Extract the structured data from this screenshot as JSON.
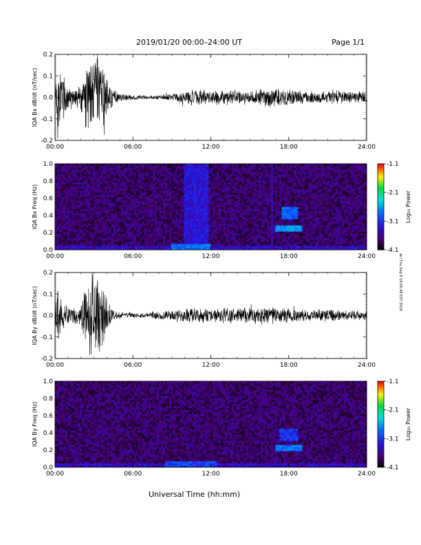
{
  "header": {
    "title": "2019/01/20  00:00–24:00 UT",
    "page": "Page 1/1"
  },
  "side_stamp": "wri Thu Sep 9 19:00:49 EST 2019",
  "chart_data": [
    {
      "type": "line",
      "ylabel": "IQA Bx dB/dt (nT/sec)",
      "xlim": [
        0,
        24
      ],
      "ylim": [
        -0.2,
        0.2
      ],
      "xticks": [
        "00:00",
        "06:00",
        "12:00",
        "18:00",
        "24:00"
      ],
      "yticks": [
        "-0.2",
        "-0.1",
        "0.0",
        "0.1",
        "0.2"
      ],
      "amplitude_profile": {
        "hour": [
          0,
          0.2,
          0.5,
          1.0,
          1.5,
          2.0,
          2.4,
          2.7,
          3.0,
          3.3,
          3.7,
          4.0,
          4.5,
          5.0,
          6.0,
          7.0,
          8.0,
          9.0,
          10.0,
          10.5,
          11.0,
          12.0,
          13.0,
          14.0,
          15.0,
          16.0,
          16.7,
          17.5,
          18.0,
          19.0,
          20.0,
          21.0,
          22.0,
          23.0,
          24.0
        ],
        "envelope": [
          0.06,
          0.22,
          0.14,
          0.07,
          0.05,
          0.07,
          0.16,
          0.22,
          0.22,
          0.22,
          0.18,
          0.1,
          0.04,
          0.025,
          0.012,
          0.01,
          0.012,
          0.02,
          0.03,
          0.045,
          0.04,
          0.035,
          0.04,
          0.038,
          0.035,
          0.05,
          0.05,
          0.045,
          0.04,
          0.035,
          0.032,
          0.04,
          0.035,
          0.03,
          0.03
        ]
      }
    },
    {
      "type": "heatmap",
      "ylabel": "IQA Bx Freq (Hz)",
      "xlim": [
        0,
        24
      ],
      "ylim": [
        0,
        1.0
      ],
      "xticks": [
        "00:00",
        "06:00",
        "12:00",
        "18:00",
        "24:00"
      ],
      "yticks": [
        "0.0",
        "0.2",
        "0.4",
        "0.6",
        "0.8",
        "1.0"
      ],
      "colorbar": {
        "label": "Log₁₀ Power",
        "ticks": [
          "-1.1",
          "-2.1",
          "-3.1",
          "-4.1"
        ],
        "range": [
          -4.1,
          -1.1
        ]
      },
      "features": [
        {
          "t0": 10.0,
          "t1": 11.9,
          "f0": 0.0,
          "f1": 1.0,
          "level": -3.3
        },
        {
          "t0": 9.0,
          "t1": 12.0,
          "f0": 0.0,
          "f1": 0.08,
          "level": -2.8
        },
        {
          "t0": 17.0,
          "t1": 19.0,
          "f0": 0.22,
          "f1": 0.28,
          "level": -2.6
        },
        {
          "t0": 17.5,
          "t1": 18.7,
          "f0": 0.35,
          "f1": 0.5,
          "level": -2.9
        },
        {
          "t0": 16.6,
          "t1": 16.8,
          "f0": 0.0,
          "f1": 1.0,
          "level": -3.5
        }
      ]
    },
    {
      "type": "line",
      "ylabel": "IQA By dB/dt (nT/sec)",
      "xlim": [
        0,
        24
      ],
      "ylim": [
        -0.2,
        0.2
      ],
      "xticks": [
        "00:00",
        "06:00",
        "12:00",
        "18:00",
        "24:00"
      ],
      "yticks": [
        "-0.2",
        "-0.1",
        "0.0",
        "0.1",
        "0.2"
      ],
      "amplitude_profile": {
        "hour": [
          0,
          0.2,
          0.5,
          1.0,
          1.5,
          2.0,
          2.4,
          2.7,
          3.0,
          3.3,
          3.7,
          4.0,
          4.5,
          5.0,
          6.0,
          7.0,
          8.0,
          9.0,
          10.0,
          11.0,
          12.0,
          13.0,
          14.0,
          15.0,
          16.0,
          17.0,
          18.0,
          19.0,
          20.0,
          21.0,
          22.0,
          23.0,
          24.0
        ],
        "envelope": [
          0.05,
          0.14,
          0.07,
          0.05,
          0.04,
          0.07,
          0.17,
          0.22,
          0.22,
          0.22,
          0.17,
          0.08,
          0.03,
          0.02,
          0.012,
          0.012,
          0.025,
          0.03,
          0.035,
          0.04,
          0.035,
          0.04,
          0.038,
          0.04,
          0.045,
          0.04,
          0.04,
          0.035,
          0.03,
          0.035,
          0.03,
          0.025,
          0.025
        ]
      }
    },
    {
      "type": "heatmap",
      "ylabel": "IQA By Freq (Hz)",
      "xlim": [
        0,
        24
      ],
      "ylim": [
        0,
        1.0
      ],
      "xticks": [
        "00:00",
        "06:00",
        "12:00",
        "18:00",
        "24:00"
      ],
      "yticks": [
        "0.0",
        "0.2",
        "0.4",
        "0.6",
        "0.8",
        "1.0"
      ],
      "xlabel": "Universal Time (hh:mm)",
      "colorbar": {
        "label": "Log₁₀ Power",
        "ticks": [
          "-1.1",
          "-2.1",
          "-3.1",
          "-4.1"
        ],
        "range": [
          -4.1,
          -1.1
        ]
      },
      "features": [
        {
          "t0": 8.5,
          "t1": 12.5,
          "f0": 0.0,
          "f1": 0.08,
          "level": -3.0
        },
        {
          "t0": 17.0,
          "t1": 19.0,
          "f0": 0.2,
          "f1": 0.26,
          "level": -2.8
        },
        {
          "t0": 17.3,
          "t1": 18.7,
          "f0": 0.3,
          "f1": 0.45,
          "level": -3.1
        }
      ]
    }
  ]
}
